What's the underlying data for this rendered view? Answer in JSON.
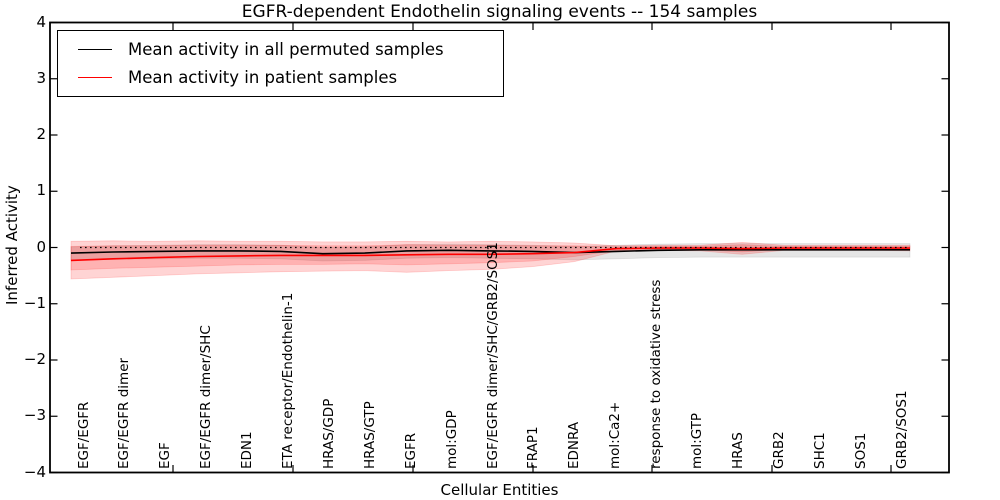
{
  "title": "EGFR-dependent Endothelin signaling events -- 154 samples",
  "legend": {
    "position": "upper left",
    "items": [
      {
        "label": "Mean activity in all permuted samples",
        "color": "#000000"
      },
      {
        "label": "Mean activity in patient samples",
        "color": "#ff0000"
      }
    ]
  },
  "chart_data": {
    "type": "line",
    "title": "EGFR-dependent Endothelin signaling events -- 154 samples",
    "sample_count": 154,
    "xlabel": "Cellular Entities",
    "ylabel": "Inferred Activity",
    "ylim": [
      -4,
      4
    ],
    "yticks": [
      4,
      3,
      2,
      1,
      0,
      -1,
      -2,
      -3,
      -4
    ],
    "ytick_labels": [
      "4",
      "3",
      "2",
      "1",
      "0",
      "−1",
      "−2",
      "−3",
      "−4"
    ],
    "grid": false,
    "categories": [
      "EGF/EGFR",
      "EGF/EGFR dimer",
      "EGF",
      "EGF/EGFR dimer/SHC",
      "EDN1",
      "ETA receptor/Endothelin-1",
      "HRAS/GDP",
      "HRAS/GTP",
      "EGFR",
      "mol:GDP",
      "EGF/EGFR dimer/SHC/GRB2/SOS1",
      "FRAP1",
      "EDNRA",
      "mol:Ca2+",
      "response to oxidative stress",
      "mol:GTP",
      "HRAS",
      "GRB2",
      "SHC1",
      "SOS1",
      "GRB2/SOS1"
    ],
    "reference_line": {
      "y": 0,
      "style": "dotted",
      "color": "#000000"
    },
    "series": [
      {
        "name": "Mean activity in all permuted samples",
        "kind": "line",
        "style": "solid",
        "color": "#000000",
        "values": [
          -0.1,
          -0.08,
          -0.07,
          -0.06,
          -0.06,
          -0.07,
          -0.11,
          -0.1,
          -0.06,
          -0.05,
          -0.06,
          -0.07,
          -0.09,
          -0.07,
          -0.05,
          -0.04,
          -0.04,
          -0.04,
          -0.04,
          -0.04,
          -0.04
        ]
      },
      {
        "name": "Mean activity in patient samples",
        "kind": "line",
        "style": "solid",
        "color": "#ff0000",
        "values": [
          -0.23,
          -0.2,
          -0.18,
          -0.16,
          -0.15,
          -0.14,
          -0.14,
          -0.14,
          -0.13,
          -0.12,
          -0.12,
          -0.11,
          -0.09,
          -0.02,
          -0.01,
          -0.01,
          -0.02,
          -0.01,
          -0.01,
          -0.01,
          -0.01
        ]
      },
      {
        "name": "Permuted samples spread band",
        "kind": "band",
        "color": "rgba(0,0,0,0.10)",
        "upper": [
          0.01,
          0.03,
          0.04,
          0.05,
          0.05,
          0.04,
          0.0,
          0.01,
          0.05,
          0.06,
          0.05,
          0.04,
          0.02,
          0.04,
          0.06,
          0.07,
          0.07,
          0.07,
          0.07,
          0.07,
          0.07
        ],
        "lower": [
          -0.23,
          -0.21,
          -0.2,
          -0.19,
          -0.19,
          -0.2,
          -0.24,
          -0.23,
          -0.19,
          -0.18,
          -0.19,
          -0.2,
          -0.22,
          -0.2,
          -0.18,
          -0.17,
          -0.17,
          -0.17,
          -0.17,
          -0.17,
          -0.17
        ]
      },
      {
        "name": "Patient samples outer spread band",
        "kind": "band",
        "color": "rgba(255,0,0,0.17)",
        "upper": [
          0.11,
          0.12,
          0.11,
          0.12,
          0.11,
          0.11,
          0.1,
          0.1,
          0.11,
          0.1,
          0.11,
          0.1,
          0.08,
          0.03,
          0.04,
          0.04,
          0.09,
          0.04,
          0.04,
          0.04,
          0.04
        ],
        "lower": [
          -0.56,
          -0.53,
          -0.5,
          -0.47,
          -0.45,
          -0.43,
          -0.42,
          -0.41,
          -0.44,
          -0.41,
          -0.39,
          -0.34,
          -0.25,
          -0.06,
          -0.05,
          -0.06,
          -0.12,
          -0.05,
          -0.05,
          -0.05,
          -0.06
        ]
      },
      {
        "name": "Patient samples inner spread band",
        "kind": "band",
        "color": "rgba(255,0,0,0.16)",
        "upper": [
          0.02,
          0.03,
          0.03,
          0.04,
          0.04,
          0.04,
          0.03,
          0.03,
          0.05,
          0.04,
          0.04,
          0.03,
          0.03,
          0.01,
          0.02,
          0.02,
          0.05,
          0.02,
          0.02,
          0.02,
          0.02
        ],
        "lower": [
          -0.4,
          -0.37,
          -0.35,
          -0.33,
          -0.31,
          -0.3,
          -0.3,
          -0.29,
          -0.31,
          -0.29,
          -0.27,
          -0.24,
          -0.16,
          -0.05,
          -0.03,
          -0.04,
          -0.08,
          -0.03,
          -0.03,
          -0.03,
          -0.03
        ]
      }
    ]
  }
}
